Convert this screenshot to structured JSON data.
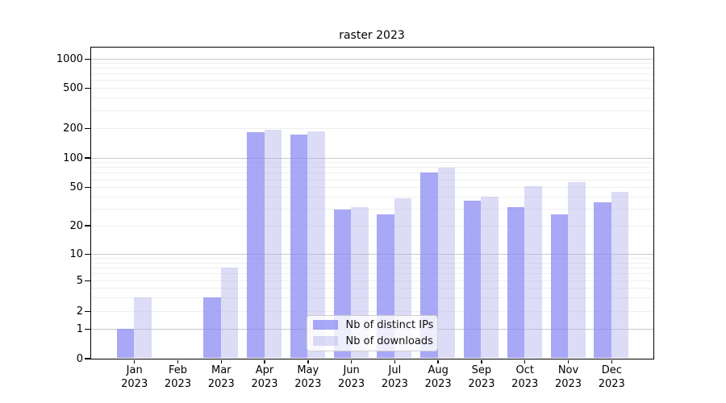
{
  "title": "raster 2023",
  "legend": {
    "items": [
      {
        "label": "Nb of distinct IPs",
        "color": "#a8a8f6"
      },
      {
        "label": "Nb of downloads",
        "color": "#dcdcf6"
      }
    ]
  },
  "y_axis": {
    "tick_labels": [
      "1000",
      "500",
      "200",
      "100",
      "50",
      "20",
      "10",
      "5",
      "2",
      "1",
      "0"
    ]
  },
  "x_axis": {
    "tick_labels": [
      "Jan 2023",
      "Feb 2023",
      "Mar 2023",
      "Apr 2023",
      "May 2023",
      "Jun 2023",
      "Jul 2023",
      "Aug 2023",
      "Sep 2023",
      "Oct 2023",
      "Nov 2023",
      "Dec 2023"
    ]
  },
  "chart_data": {
    "type": "bar",
    "title": "raster 2023",
    "categories": [
      "Jan 2023",
      "Feb 2023",
      "Mar 2023",
      "Apr 2023",
      "May 2023",
      "Jun 2023",
      "Jul 2023",
      "Aug 2023",
      "Sep 2023",
      "Oct 2023",
      "Nov 2023",
      "Dec 2023"
    ],
    "series": [
      {
        "name": "Nb of distinct IPs",
        "color": "#a8a8f6",
        "values": [
          1,
          0,
          3,
          183,
          170,
          29,
          26,
          70,
          36,
          31,
          26,
          35
        ]
      },
      {
        "name": "Nb of downloads",
        "color": "#dcdcf6",
        "values": [
          3,
          0,
          7,
          192,
          184,
          31,
          38,
          79,
          40,
          51,
          56,
          45
        ]
      }
    ],
    "xlabel": "",
    "ylabel": "",
    "yscale": "log-like with linear 0-1 segment",
    "yticks": [
      0,
      1,
      2,
      5,
      10,
      20,
      50,
      100,
      200,
      500,
      1000
    ],
    "ylim": [
      0,
      1400
    ],
    "grid": true,
    "gridlines_major": [
      1,
      10,
      100,
      1000
    ],
    "gridlines_minor": [
      2,
      3,
      4,
      5,
      6,
      7,
      8,
      9,
      20,
      30,
      40,
      50,
      60,
      70,
      80,
      90,
      200,
      300,
      400,
      500,
      600,
      700,
      800,
      900
    ],
    "legend_position": "lower center"
  }
}
